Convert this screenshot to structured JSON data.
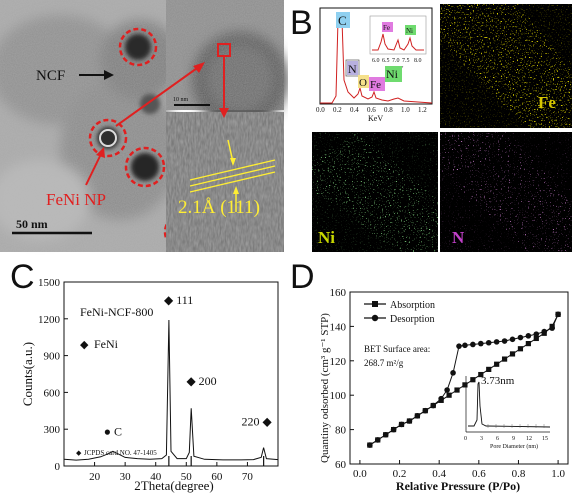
{
  "panel_a": {
    "letter": "A",
    "labels": {
      "ncf": "NCF",
      "nanoparticle": "FeNi NP",
      "lattice": "2.1Å (111)",
      "scale_main": "50 nm",
      "scale_inset": "10 nm"
    }
  },
  "panel_b": {
    "letter": "B",
    "eds": {
      "xlabel": "KeV",
      "inset_xlabel": "KeV",
      "x_ticks": [
        "0.0",
        "0.2",
        "0.4",
        "0.6",
        "0.8",
        "1.0",
        "1.2"
      ],
      "inset_ticks": [
        "6.0",
        "6.5",
        "7.0",
        "7.5",
        "8.0"
      ],
      "peak_labels": {
        "c": "C",
        "fe_inset": "Fe",
        "ni_inset": "Ni",
        "n": "N",
        "o": "O",
        "fe": "Fe",
        "ni": "Ni"
      }
    },
    "maps": [
      {
        "element": "Fe",
        "color": "#c8b400"
      },
      {
        "element": "Ni",
        "color": "#3db83d"
      },
      {
        "element": "N",
        "color": "#c040c8"
      }
    ]
  },
  "panel_c": {
    "letter": "C",
    "title": "FeNi-NCF-800",
    "legend": "FeNi",
    "card": "JCPDS card NO. 47-1405",
    "peak_labels": [
      "C",
      "111",
      "200",
      "220"
    ],
    "ylabel": "Counts(a.u.)",
    "xlabel": "2Theta(degree)",
    "x_ticks": [
      "20",
      "30",
      "40",
      "50",
      "60",
      "70"
    ],
    "y_ticks": [
      "0",
      "300",
      "600",
      "900",
      "1200",
      "1500"
    ]
  },
  "panel_d": {
    "letter": "D",
    "legend": [
      "Absorption",
      "Desorption"
    ],
    "bet_line1": "BET Surface area:",
    "bet_line2": "268.7 m²/g",
    "pore_label": "3.73nm",
    "inset_xlabel": "Pore Diameter (nm)",
    "inset_ticks": [
      "0",
      "3",
      "6",
      "9",
      "12",
      "15"
    ],
    "ylabel": "Quantiny odsorbed (cm³ g⁻¹ STP)",
    "xlabel": "Relative Pressure (P/Po)",
    "x_ticks": [
      "0.0",
      "0.2",
      "0.4",
      "0.6",
      "0.8",
      "1.0"
    ],
    "y_ticks": [
      "60",
      "80",
      "100",
      "120",
      "140",
      "160"
    ]
  },
  "chart_data": [
    {
      "type": "line",
      "panel": "C",
      "xlabel": "2Theta(degree)",
      "ylabel": "Counts(a.u.)",
      "xlim": [
        10,
        80
      ],
      "ylim": [
        0,
        1500
      ],
      "series": [
        {
          "x": [
            10,
            14,
            18,
            22,
            24,
            26,
            28,
            30,
            34,
            38,
            42,
            43.5,
            44.3,
            45,
            47,
            50,
            51.0,
            51.6,
            52.5,
            56,
            62,
            68,
            72,
            74.5,
            75.3,
            76.2,
            80
          ],
          "y": [
            55,
            48,
            55,
            75,
            95,
            120,
            95,
            70,
            60,
            55,
            60,
            90,
            1190,
            120,
            60,
            60,
            110,
            470,
            80,
            55,
            50,
            50,
            52,
            70,
            150,
            60,
            52
          ]
        }
      ],
      "annotations": [
        "C",
        "111",
        "200",
        "220"
      ]
    },
    {
      "type": "line",
      "panel": "D",
      "xlabel": "Relative Pressure (P/Po)",
      "ylabel": "Quantiny odsorbed (cm³ g⁻¹ STP)",
      "xlim": [
        -0.05,
        1.05
      ],
      "ylim": [
        60,
        160
      ],
      "series": [
        {
          "name": "Absorption",
          "x": [
            0.05,
            0.09,
            0.13,
            0.17,
            0.21,
            0.25,
            0.29,
            0.33,
            0.37,
            0.41,
            0.45,
            0.49,
            0.53,
            0.57,
            0.61,
            0.65,
            0.69,
            0.73,
            0.77,
            0.81,
            0.85,
            0.89,
            0.93,
            0.97,
            1.0
          ],
          "y": [
            71,
            74,
            77,
            80,
            83,
            85,
            88,
            91,
            94,
            97,
            100,
            103,
            106,
            109,
            112,
            115,
            118,
            121,
            124,
            127,
            130,
            133,
            136,
            140,
            147
          ]
        },
        {
          "name": "Desorption",
          "x": [
            1.0,
            0.97,
            0.93,
            0.89,
            0.85,
            0.81,
            0.77,
            0.73,
            0.69,
            0.65,
            0.61,
            0.57,
            0.53,
            0.5,
            0.47,
            0.44,
            0.41,
            0.37,
            0.33,
            0.29,
            0.25,
            0.21,
            0.17,
            0.13,
            0.09,
            0.05
          ],
          "y": [
            147,
            139,
            137,
            135.5,
            134.5,
            133.5,
            132.5,
            131.5,
            131,
            130.5,
            130,
            129.5,
            129,
            128.5,
            113,
            103,
            98,
            94,
            91,
            88,
            85,
            83,
            80,
            77,
            74,
            71
          ]
        }
      ]
    }
  ]
}
